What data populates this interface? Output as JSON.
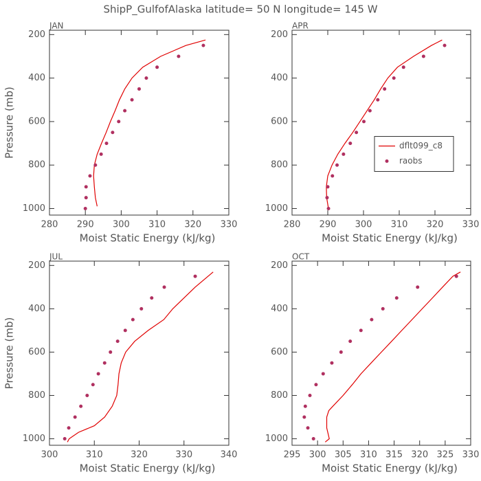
{
  "title": "ShipP_GulfofAlaska  latitude= 50 N longitude= 145 W",
  "chart_data": [
    {
      "type": "line",
      "title": "JAN",
      "xlabel": "Moist Static Energy (kJ/kg)",
      "ylabel": "Pressure (mb)",
      "xlim": [
        280,
        330
      ],
      "xticks": [
        280,
        290,
        300,
        310,
        320,
        330
      ],
      "ylim": [
        1030,
        180
      ],
      "yticks": [
        200,
        400,
        600,
        800,
        1000
      ],
      "series": [
        {
          "name": "dflt099_c8",
          "color": "#e00000",
          "style": "line",
          "x": [
            293.3,
            292.8,
            292.5,
            292.3,
            292.5,
            293.3,
            294.5,
            295.8,
            297,
            298.3,
            299.5,
            301,
            303,
            306,
            311,
            318,
            323.5
          ],
          "values": [
            990,
            950,
            900,
            850,
            800,
            750,
            700,
            650,
            600,
            550,
            500,
            450,
            400,
            350,
            300,
            250,
            225
          ]
        },
        {
          "name": "raobs",
          "color": "#b03060",
          "style": "points",
          "x": [
            290,
            290.2,
            290.2,
            291.3,
            292.8,
            294.4,
            295.9,
            297.6,
            299.3,
            301,
            303,
            305,
            307,
            310,
            316,
            322.9
          ],
          "values": [
            1000,
            950,
            900,
            850,
            800,
            750,
            700,
            650,
            600,
            550,
            500,
            450,
            400,
            350,
            300,
            250
          ]
        }
      ]
    },
    {
      "type": "line",
      "title": "APR",
      "xlabel": "Moist Static Energy (kJ/kg)",
      "legend": "center right",
      "xlim": [
        280,
        330
      ],
      "xticks": [
        280,
        290,
        300,
        310,
        320,
        330
      ],
      "ylim": [
        1030,
        180
      ],
      "yticks": [
        200,
        400,
        600,
        800,
        1000
      ],
      "series": [
        {
          "name": "dflt099_c8",
          "color": "#e00000",
          "style": "line",
          "x": [
            290.2,
            289.7,
            289.6,
            290,
            291.2,
            292.8,
            294.8,
            297,
            299,
            301,
            303,
            304.8,
            306.8,
            309.5,
            314,
            319,
            322
          ],
          "values": [
            1000,
            950,
            900,
            850,
            800,
            750,
            700,
            650,
            600,
            550,
            500,
            450,
            400,
            350,
            300,
            250,
            225
          ]
        },
        {
          "name": "raobs",
          "color": "#b03060",
          "style": "points",
          "x": [
            290.2,
            289.8,
            290,
            291.3,
            292.6,
            294.4,
            296.3,
            298,
            300.1,
            301.8,
            304,
            305.9,
            308.5,
            311.2,
            316.8,
            322.7
          ],
          "values": [
            1000,
            950,
            900,
            850,
            800,
            750,
            700,
            650,
            600,
            550,
            500,
            450,
            400,
            350,
            300,
            250
          ]
        }
      ]
    },
    {
      "type": "line",
      "title": "JUL",
      "xlabel": "Moist Static Energy (kJ/kg)",
      "ylabel": "Pressure (mb)",
      "xlim": [
        300,
        340
      ],
      "xticks": [
        300,
        310,
        320,
        330,
        340
      ],
      "ylim": [
        1030,
        180
      ],
      "yticks": [
        200,
        400,
        600,
        800,
        1000
      ],
      "series": [
        {
          "name": "dflt099_c8",
          "color": "#e00000",
          "style": "line",
          "x": [
            304,
            304.4,
            306.5,
            310,
            312.3,
            314,
            315,
            315.3,
            315.5,
            316,
            317,
            319,
            322,
            325.5,
            327.5,
            330,
            332.5,
            336.5
          ],
          "values": [
            1015,
            1000,
            970,
            940,
            900,
            850,
            800,
            750,
            700,
            650,
            600,
            550,
            500,
            450,
            400,
            350,
            300,
            230
          ]
        },
        {
          "name": "raobs",
          "color": "#b03060",
          "style": "points",
          "x": [
            303.4,
            304.3,
            305.7,
            307,
            308.4,
            309.7,
            310.9,
            312.3,
            313.6,
            315.2,
            316.9,
            318.6,
            320.5,
            322.8,
            325.6,
            332.5
          ],
          "values": [
            1000,
            950,
            900,
            850,
            800,
            750,
            700,
            650,
            600,
            550,
            500,
            450,
            400,
            350,
            300,
            250
          ]
        }
      ]
    },
    {
      "type": "line",
      "title": "OCT",
      "xlabel": "Moist Static Energy (kJ/kg)",
      "xlim": [
        295,
        330
      ],
      "xticks": [
        295,
        300,
        305,
        310,
        315,
        320,
        325,
        330
      ],
      "ylim": [
        1030,
        180
      ],
      "yticks": [
        200,
        400,
        600,
        800,
        1000
      ],
      "series": [
        {
          "name": "dflt099_c8",
          "color": "#e00000",
          "style": "line",
          "x": [
            301.5,
            302.3,
            302,
            301.8,
            301.8,
            302.2,
            303,
            305,
            306.8,
            308.5,
            310.5,
            312.5,
            314.5,
            316.5,
            318.5,
            320.5,
            322.5,
            324.5,
            326.5,
            328
          ],
          "values": [
            1015,
            1000,
            970,
            950,
            900,
            870,
            850,
            800,
            750,
            700,
            650,
            600,
            550,
            500,
            450,
            400,
            350,
            300,
            250,
            230
          ]
        },
        {
          "name": "raobs",
          "color": "#b03060",
          "style": "points",
          "x": [
            299.2,
            298.1,
            297.4,
            297.6,
            298.5,
            299.7,
            301.1,
            302.8,
            304.6,
            306.4,
            308.5,
            310.6,
            312.8,
            315.5,
            319.6,
            327.2
          ],
          "values": [
            1000,
            950,
            900,
            850,
            800,
            750,
            700,
            650,
            600,
            550,
            500,
            450,
            400,
            350,
            300,
            250
          ]
        }
      ]
    }
  ]
}
